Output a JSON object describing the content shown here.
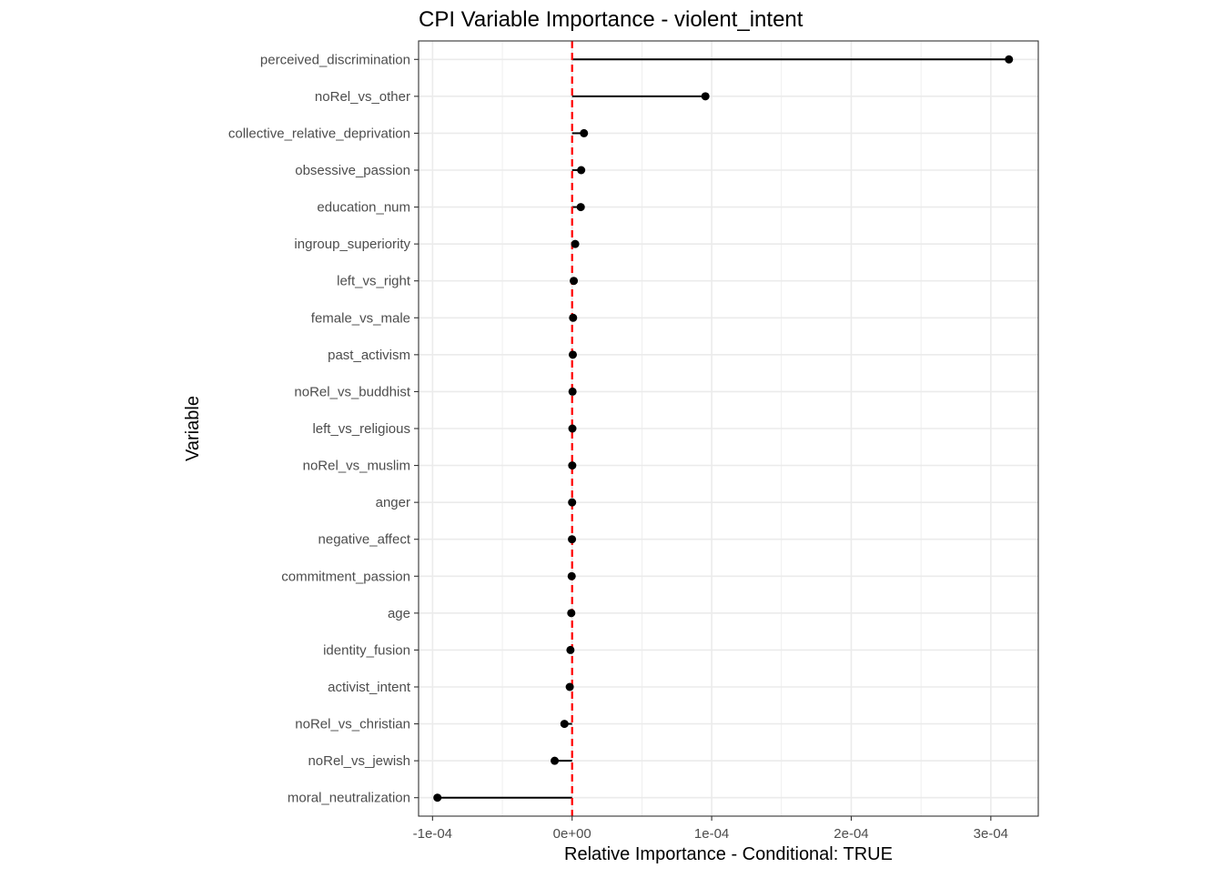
{
  "chart_data": {
    "type": "lollipop",
    "title": "CPI Variable Importance - violent_intent",
    "xlabel": "Relative Importance - Conditional: TRUE",
    "ylabel": "Variable",
    "xlim": [
      -0.00011,
      0.000334
    ],
    "x_ticks": [
      -0.0001,
      0.0,
      0.0001,
      0.0002,
      0.0003
    ],
    "x_tick_labels": [
      "-1e-04",
      "0e+00",
      "1e-04",
      "2e-04",
      "3e-04"
    ],
    "reference_line": {
      "x": 0,
      "style": "dashed",
      "color": "#ff0000"
    },
    "grid": true,
    "point_color": "#000000",
    "panel_border_color": "#333333",
    "grid_color": "#ebebeb",
    "categories": [
      "perceived_discrimination",
      "noRel_vs_other",
      "collective_relative_deprivation",
      "obsessive_passion",
      "education_num",
      "ingroup_superiority",
      "left_vs_right",
      "female_vs_male",
      "past_activism",
      "noRel_vs_buddhist",
      "left_vs_religious",
      "noRel_vs_muslim",
      "anger",
      "negative_affect",
      "commitment_passion",
      "age",
      "identity_fusion",
      "activist_intent",
      "noRel_vs_christian",
      "noRel_vs_jewish",
      "moral_neutralization"
    ],
    "values": [
      0.000313,
      9.55e-05,
      8.5e-06,
      6.5e-06,
      6.2e-06,
      2.2e-06,
      1.2e-06,
      7e-07,
      5e-07,
      3e-07,
      2e-07,
      1e-07,
      0.0,
      -1e-07,
      -3e-07,
      -6e-07,
      -1.2e-06,
      -1.7e-06,
      -5.5e-06,
      -1.25e-05,
      -9.65e-05
    ]
  }
}
